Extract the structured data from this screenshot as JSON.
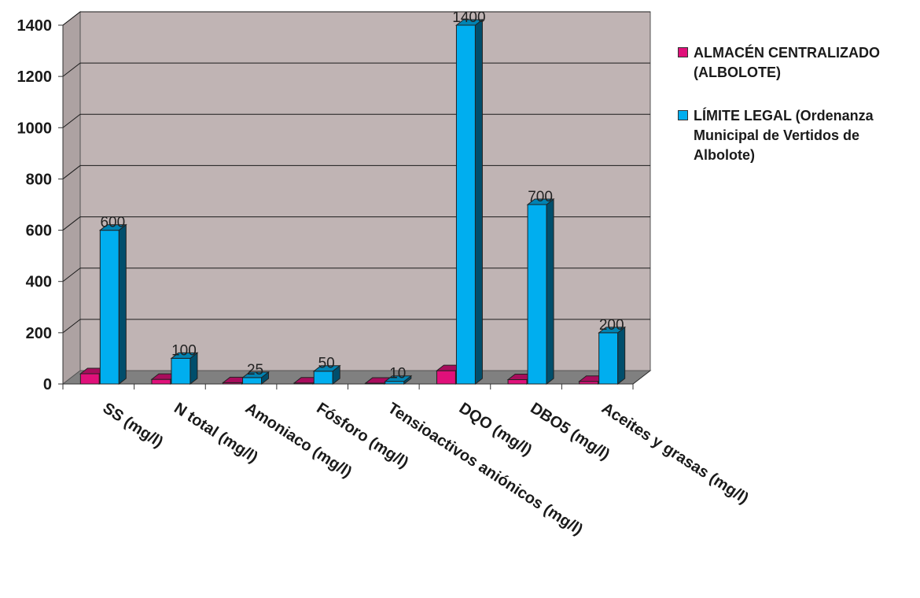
{
  "chart_data": {
    "type": "bar",
    "title": "",
    "xlabel": "",
    "ylabel": "",
    "ylim": [
      0,
      1400
    ],
    "yticks": [
      0,
      200,
      400,
      600,
      800,
      1000,
      1200,
      1400
    ],
    "grid": true,
    "three_d": true,
    "legend_position": "right",
    "categories": [
      "SS (mg/l)",
      "N total (mg/l)",
      "Amoniaco (mg/l)",
      "Fósforo (mg/l)",
      "Tensioactivos aniónicos (mg/l)",
      "DQO (mg/l)",
      "DBO5 (mg/l)",
      "Aceites y grasas (mg/l)"
    ],
    "series": [
      {
        "name": "ALMACÉN CENTRALIZADO (ALBOLOTE)",
        "color": "#e0107a",
        "values": [
          40,
          18,
          5,
          4,
          3,
          52,
          17,
          10
        ]
      },
      {
        "name": "LÍMITE LEGAL (Ordenanza Municipal de Vertidos de Albolote)",
        "color": "#00aeef",
        "values": [
          600,
          100,
          25,
          50,
          10,
          1400,
          700,
          200
        ],
        "data_labels": [
          "600",
          "100",
          "25",
          "50",
          "10",
          "1400",
          "700",
          "200"
        ]
      }
    ],
    "legend_lines": [
      [
        "ALMACÉN CENTRALIZADO",
        "(ALBOLOTE)"
      ],
      [
        "LÍMITE LEGAL (Ordenanza",
        "Municipal de Vertidos de",
        "Albolote)"
      ]
    ]
  },
  "colors": {
    "plot_wall": "#c0b4b4",
    "plot_floor": "#808080",
    "gridline": "#1a1a1a"
  }
}
